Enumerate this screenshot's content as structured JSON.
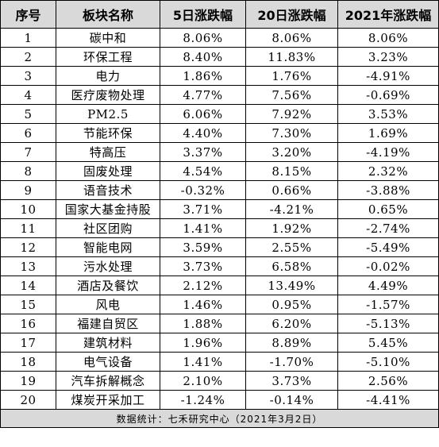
{
  "table": {
    "headers": [
      "序号",
      "板块名称",
      "5日涨跌幅",
      "20日涨跌幅",
      "2021年涨跌幅"
    ],
    "rows": [
      [
        "1",
        "碳中和",
        "8.06%",
        "8.06%",
        "8.06%"
      ],
      [
        "2",
        "环保工程",
        "8.40%",
        "11.83%",
        "3.23%"
      ],
      [
        "3",
        "电力",
        "1.86%",
        "1.76%",
        "-4.91%"
      ],
      [
        "4",
        "医疗废物处理",
        "4.77%",
        "7.56%",
        "-0.69%"
      ],
      [
        "5",
        "PM2.5",
        "6.06%",
        "7.92%",
        "3.53%"
      ],
      [
        "6",
        "节能环保",
        "4.40%",
        "7.30%",
        "1.69%"
      ],
      [
        "7",
        "特高压",
        "3.37%",
        "3.20%",
        "-4.19%"
      ],
      [
        "8",
        "固废处理",
        "4.54%",
        "8.15%",
        "2.32%"
      ],
      [
        "9",
        "语音技术",
        "-0.32%",
        "0.66%",
        "-3.88%"
      ],
      [
        "10",
        "国家大基金持股",
        "3.71%",
        "-4.21%",
        "0.65%"
      ],
      [
        "11",
        "社区团购",
        "1.41%",
        "1.92%",
        "-2.74%"
      ],
      [
        "12",
        "智能电网",
        "3.59%",
        "2.55%",
        "-5.49%"
      ],
      [
        "13",
        "污水处理",
        "3.73%",
        "6.58%",
        "-0.02%"
      ],
      [
        "14",
        "酒店及餐饮",
        "2.12%",
        "13.49%",
        "4.49%"
      ],
      [
        "15",
        "风电",
        "1.46%",
        "0.95%",
        "-1.57%"
      ],
      [
        "16",
        "福建自贸区",
        "1.88%",
        "6.20%",
        "-5.13%"
      ],
      [
        "17",
        "建筑材料",
        "1.96%",
        "8.89%",
        "5.45%"
      ],
      [
        "18",
        "电气设备",
        "1.41%",
        "-1.70%",
        "-5.10%"
      ],
      [
        "19",
        "汽车拆解概念",
        "2.10%",
        "3.73%",
        "2.56%"
      ],
      [
        "20",
        "煤炭开采加工",
        "-1.24%",
        "-0.14%",
        "-4.41%"
      ]
    ],
    "footer": "数据统计：七禾研究中心（2021年3月2日）"
  }
}
